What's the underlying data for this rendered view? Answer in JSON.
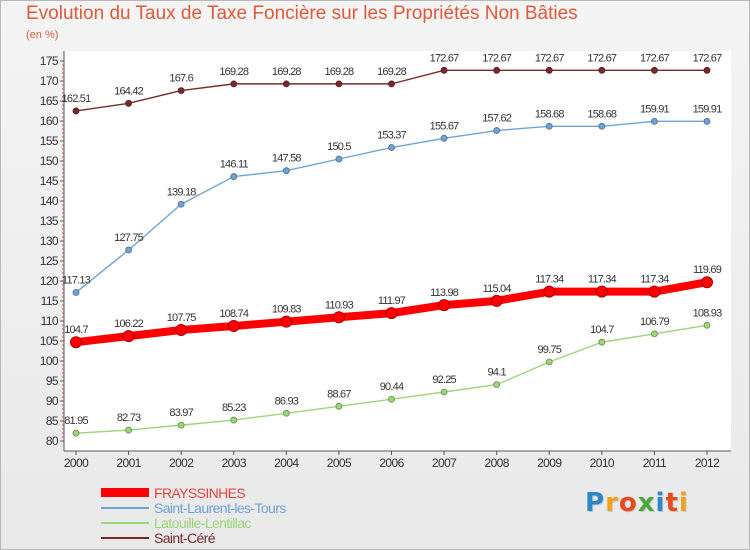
{
  "header": {
    "title": "Evolution du Taux de Taxe Foncière sur les Propriétés Non Bâties",
    "unit": "(en %)"
  },
  "logo": {
    "text": "Proxiti",
    "letters": [
      {
        "ch": "P",
        "color": "#2f86c8"
      },
      {
        "ch": "r",
        "color": "#f0a21a"
      },
      {
        "ch": "o",
        "color": "#e84a20"
      },
      {
        "ch": "x",
        "color": "#4aa93b"
      },
      {
        "ch": "i",
        "color": "#2f86c8"
      },
      {
        "ch": "t",
        "color": "#e84a20"
      },
      {
        "ch": "i",
        "color": "#f0a21a"
      }
    ]
  },
  "chart_data": {
    "type": "line",
    "x": [
      "2000",
      "2001",
      "2002",
      "2003",
      "2004",
      "2005",
      "2006",
      "2007",
      "2008",
      "2009",
      "2010",
      "2011",
      "2012"
    ],
    "ylim": [
      80,
      175
    ],
    "ytick_step": 5,
    "grid": false,
    "legend_position": "bottom-left",
    "series": [
      {
        "name": "FRAYSSINHES",
        "color": "#ff0000",
        "weight": "thick",
        "values": [
          104.7,
          106.22,
          107.75,
          108.74,
          109.83,
          110.93,
          111.97,
          113.98,
          115.04,
          117.34,
          117.34,
          117.34,
          119.69
        ],
        "labels": [
          "104.7",
          "106.22",
          "107.75",
          "108.74",
          "109.83",
          "110.93",
          "111.97",
          "113.98",
          "115.04",
          "117.34",
          "117.34",
          "117.34",
          "119.69"
        ]
      },
      {
        "name": "Saint-Laurent-les-Tours",
        "color": "#6ea3d8",
        "weight": "thin",
        "values": [
          117.13,
          127.75,
          139.18,
          146.11,
          147.58,
          150.5,
          153.37,
          155.67,
          157.62,
          158.68,
          158.68,
          159.91,
          159.91
        ],
        "labels": [
          "117.13",
          "127.75",
          "139.18",
          "146.11",
          "147.58",
          "150.5",
          "153.37",
          "155.67",
          "157.62",
          "158.68",
          "158.68",
          "159.91",
          "159.91"
        ]
      },
      {
        "name": "Latouille-Lentillac",
        "color": "#9cd57a",
        "weight": "thin",
        "values": [
          81.95,
          82.73,
          83.97,
          85.23,
          86.93,
          88.67,
          90.44,
          92.25,
          94.1,
          99.75,
          104.7,
          106.79,
          108.93
        ],
        "labels": [
          "81.95",
          "82.73",
          "83.97",
          "85.23",
          "86.93",
          "88.67",
          "90.44",
          "92.25",
          "94.1",
          "99.75",
          "104.7",
          "106.79",
          "108.93"
        ]
      },
      {
        "name": "Saint-Céré",
        "color": "#7a2a2a",
        "weight": "thin",
        "values": [
          162.51,
          164.42,
          167.6,
          169.28,
          169.28,
          169.28,
          169.28,
          172.67,
          172.67,
          172.67,
          172.67,
          172.67,
          172.67
        ],
        "labels": [
          "162.51",
          "164.42",
          "167.6",
          "169.28",
          "169.28",
          "169.28",
          "169.28",
          "172.67",
          "172.67",
          "172.67",
          "172.67",
          "172.67",
          "172.67"
        ]
      }
    ]
  }
}
